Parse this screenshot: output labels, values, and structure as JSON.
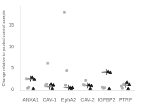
{
  "chart_data": {
    "type": "scatter",
    "ylabel": "Change relative to pooled control sample",
    "categories": [
      "ANXA1",
      "CAV-1",
      "EphA2",
      "CAV-2",
      "IGFBP2",
      "PTRF"
    ],
    "ylim": [
      -0.3,
      19.5
    ],
    "yticks": [
      0,
      5,
      10,
      15
    ],
    "grid": false,
    "series": [
      {
        "color": "#b0b0b0",
        "marker": "square",
        "values": [
          2.5,
          0.9,
          18.0,
          1.1,
          0.5,
          0.8
        ]
      },
      {
        "color": "#b0b0b0",
        "marker": "square",
        "values": [
          0.5,
          6.1,
          4.4,
          2.1,
          0.4,
          1.2
        ]
      },
      {
        "color": "#b0b0b0",
        "marker": "square",
        "values": [
          0.3,
          1.2,
          1.0,
          1.0,
          0.3,
          0.3
        ]
      },
      {
        "color": "#1a1a1a",
        "marker": "triangle",
        "values": [
          2.8,
          1.2,
          0.4,
          1.0,
          4.1,
          1.6
        ]
      },
      {
        "color": "#1a1a1a",
        "marker": "triangle",
        "values": [
          2.3,
          1.0,
          0.4,
          0.85,
          3.9,
          1.1
        ]
      },
      {
        "color": "#1a1a1a",
        "marker": "triangle",
        "values": [
          0.15,
          0.15,
          0.15,
          0.15,
          0.15,
          0.15
        ]
      },
      {
        "color": "#888888",
        "marker": "line",
        "values": [
          2.4,
          0.7,
          0.45,
          0.9,
          4.0,
          1.0
        ]
      },
      {
        "color": "#1a1a1a",
        "marker": "plus",
        "values": [
          2.5,
          0.65,
          0.45,
          0.9,
          4.05,
          1.05
        ]
      }
    ]
  }
}
